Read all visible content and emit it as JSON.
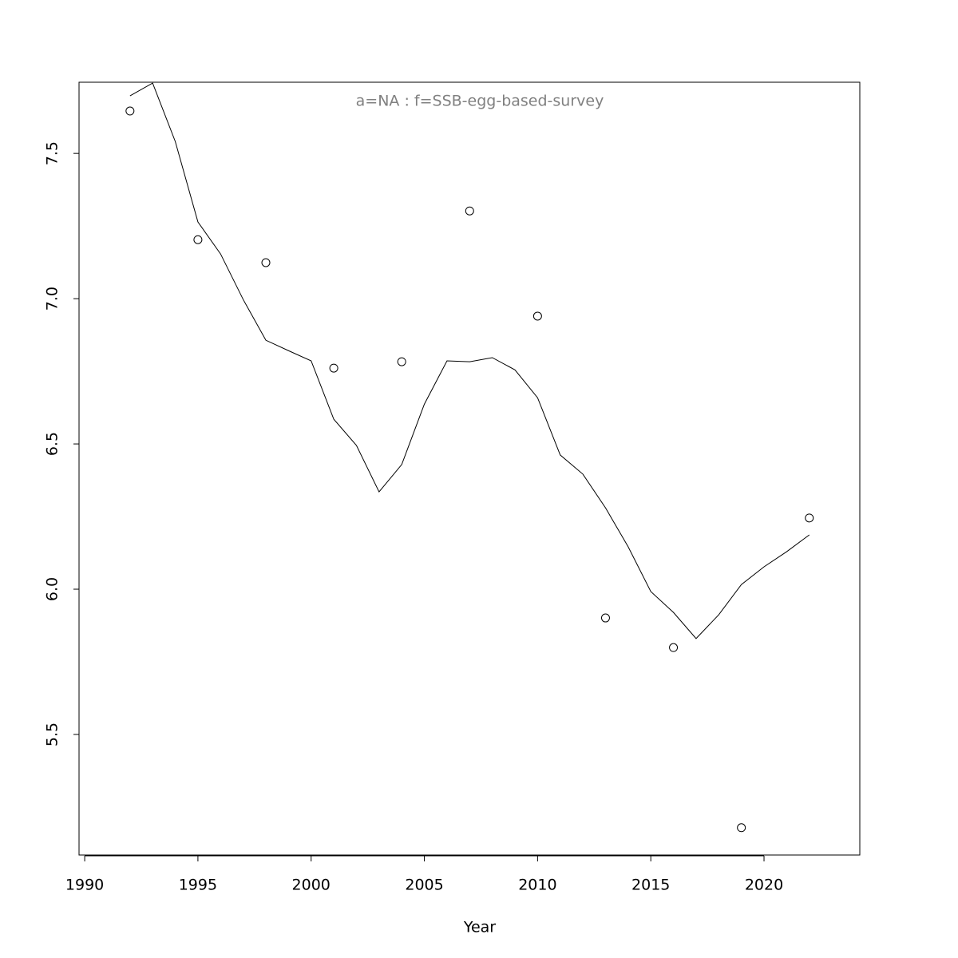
{
  "chart_data": {
    "type": "scatter-line",
    "title": "a=NA  :  f=SSB-egg-based-survey",
    "xlabel": "Year",
    "xlim": [
      1989.75,
      2024.23
    ],
    "ylim": [
      5.085,
      7.745
    ],
    "xticks": [
      1990,
      1995,
      2000,
      2005,
      2010,
      2015,
      2020
    ],
    "yticks": [
      5.5,
      {
        "value": 6,
        "label": "6.0"
      },
      6.5,
      {
        "value": 7,
        "label": "7.0"
      },
      7.5
    ],
    "series": [
      {
        "style": "points",
        "color": "#000000",
        "x": [
          1992,
          1995,
          1998,
          2001,
          2004,
          2007,
          2010,
          2013,
          2016,
          2019,
          2022
        ],
        "values": [
          7.646,
          7.203,
          7.124,
          6.761,
          6.783,
          7.302,
          6.94,
          5.901,
          5.799,
          5.179,
          6.245
        ]
      },
      {
        "style": "line",
        "color": "#000000",
        "x": [
          1992,
          1993,
          1994,
          1995,
          1996,
          1997,
          1998,
          1999,
          2000,
          2001,
          2002,
          2003,
          2004,
          2005,
          2006,
          2007,
          2008,
          2009,
          2010,
          2011,
          2012,
          2013,
          2014,
          2015,
          2016,
          2017,
          2018,
          2019,
          2020,
          2021,
          2022
        ],
        "values": [
          7.698,
          7.742,
          7.541,
          7.264,
          7.154,
          6.997,
          6.857,
          6.821,
          6.786,
          6.585,
          6.495,
          6.335,
          6.429,
          6.637,
          6.786,
          6.783,
          6.797,
          6.755,
          6.659,
          6.462,
          6.396,
          6.28,
          6.146,
          5.992,
          5.92,
          5.83,
          5.912,
          6.016,
          6.077,
          6.129,
          6.187
        ]
      }
    ]
  }
}
